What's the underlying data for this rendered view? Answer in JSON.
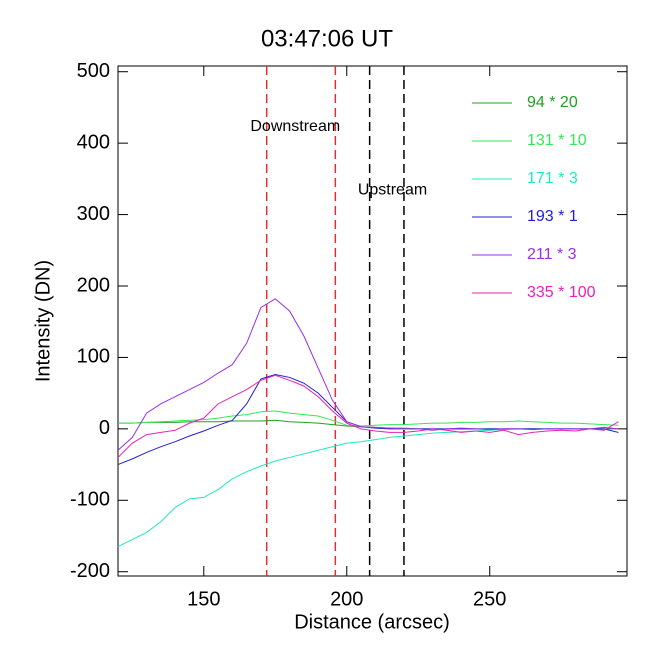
{
  "chart_data": {
    "type": "line",
    "title": "03:47:06 UT",
    "x_label": "Distance (arcsec)",
    "y_label": "Intensity (DN)",
    "xlim": [
      120,
      298
    ],
    "xticks": [
      150,
      200,
      250
    ],
    "ylim": [
      -206,
      508
    ],
    "yticks": [
      -200,
      -100,
      0,
      100,
      200,
      300,
      400,
      500
    ],
    "x": [
      120,
      125,
      130,
      135,
      140,
      145,
      150,
      155,
      160,
      165,
      170,
      175,
      180,
      185,
      190,
      195,
      200,
      205,
      210,
      215,
      220,
      225,
      230,
      235,
      240,
      245,
      250,
      255,
      260,
      265,
      270,
      275,
      280,
      285,
      290,
      295
    ],
    "series": [
      {
        "name": "94 * 20",
        "color": "#22a022",
        "values": [
          8,
          8,
          9,
          9,
          9,
          10,
          10,
          10,
          11,
          11,
          11,
          12,
          10,
          9,
          8,
          6,
          4,
          3,
          2,
          1,
          1,
          0,
          0,
          0,
          0,
          0,
          0,
          0,
          0,
          0,
          0,
          0,
          0,
          0,
          0,
          0
        ]
      },
      {
        "name": "131 * 10",
        "color": "#33e855",
        "values": [
          8,
          8,
          9,
          10,
          11,
          12,
          13,
          15,
          18,
          20,
          24,
          25,
          22,
          20,
          18,
          12,
          5,
          4,
          5,
          6,
          6,
          7,
          8,
          8,
          9,
          9,
          10,
          10,
          11,
          10,
          9,
          8,
          8,
          7,
          6,
          5
        ]
      },
      {
        "name": "171 * 3",
        "color": "#22e8c0",
        "values": [
          -165,
          -155,
          -145,
          -130,
          -110,
          -98,
          -96,
          -85,
          -70,
          -60,
          -52,
          -45,
          -40,
          -35,
          -30,
          -25,
          -20,
          -18,
          -15,
          -12,
          -10,
          -8,
          -6,
          -5,
          -4,
          -3,
          -2,
          -1,
          0,
          0,
          0,
          0,
          0,
          0,
          0,
          -5
        ]
      },
      {
        "name": "193 * 1",
        "color": "#2020d8",
        "values": [
          -50,
          -42,
          -33,
          -25,
          -18,
          -10,
          -3,
          5,
          12,
          35,
          70,
          76,
          72,
          64,
          50,
          30,
          10,
          3,
          1,
          0,
          0,
          0,
          0,
          0,
          0,
          0,
          0,
          0,
          0,
          0,
          0,
          0,
          0,
          0,
          0,
          -5
        ]
      },
      {
        "name": "211 * 3",
        "color": "#9a30e8",
        "values": [
          -30,
          -12,
          22,
          35,
          45,
          55,
          65,
          78,
          90,
          120,
          170,
          182,
          165,
          130,
          85,
          40,
          10,
          3,
          2,
          1,
          0,
          0,
          -2,
          0,
          1,
          0,
          -1,
          0,
          0,
          -1,
          0,
          0,
          0,
          0,
          2,
          0
        ]
      },
      {
        "name": "335 * 100",
        "color": "#e822b8",
        "values": [
          -40,
          -20,
          -8,
          -5,
          -2,
          8,
          15,
          35,
          45,
          55,
          68,
          75,
          68,
          60,
          45,
          25,
          8,
          0,
          -3,
          -5,
          -5,
          -3,
          0,
          -2,
          -5,
          -3,
          -5,
          -2,
          -8,
          -5,
          -3,
          -2,
          -3,
          0,
          -2,
          10
        ]
      }
    ],
    "vlines": [
      {
        "x": 172,
        "color": "#e03030"
      },
      {
        "x": 196,
        "color": "#e03030"
      },
      {
        "x": 208,
        "color": "#000000"
      },
      {
        "x": 220,
        "color": "#000000"
      }
    ],
    "annotations": [
      {
        "text": "Downstream",
        "x": 182,
        "y": 423
      },
      {
        "text": "Upstream",
        "x": 216,
        "y": 334
      }
    ],
    "legend": "top-right"
  }
}
